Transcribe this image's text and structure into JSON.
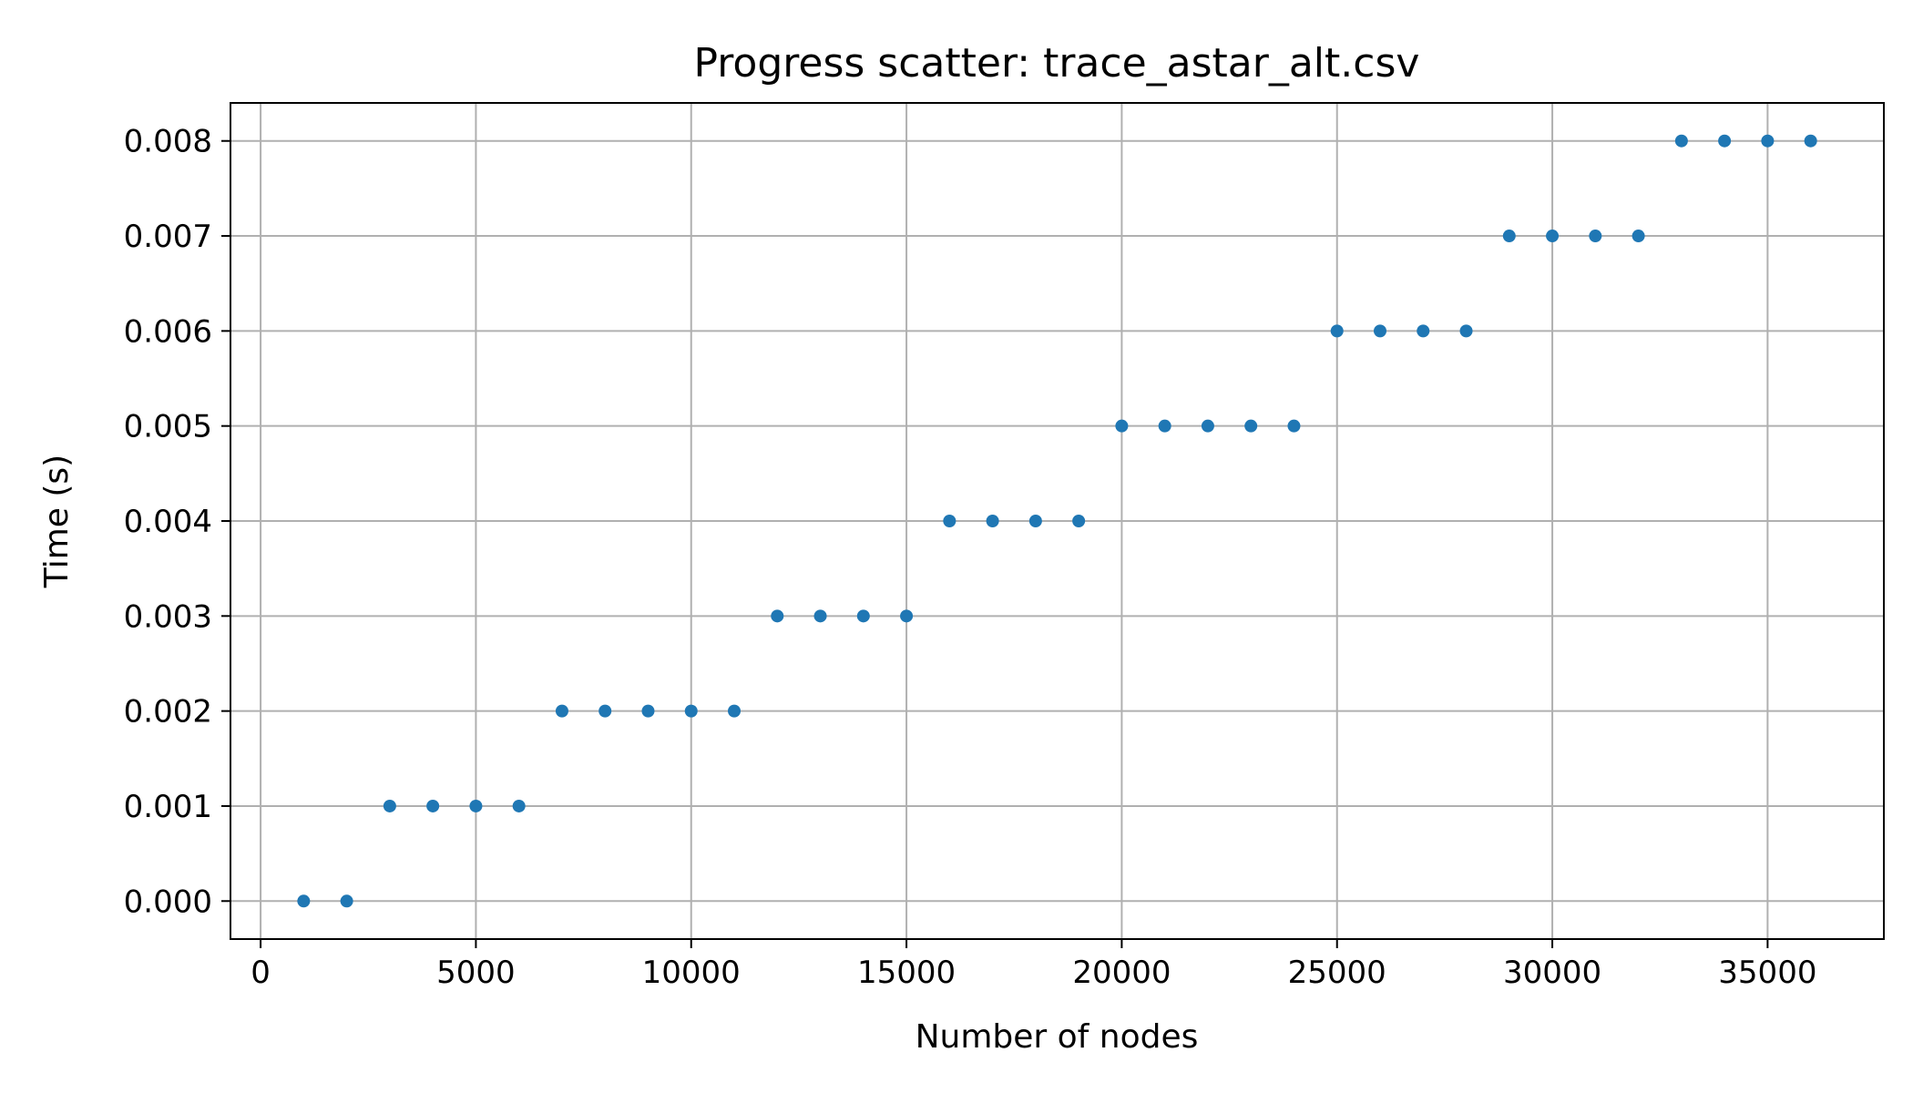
{
  "chart_data": {
    "type": "scatter",
    "title": "Progress scatter: trace_astar_alt.csv",
    "xlabel": "Number of nodes",
    "ylabel": "Time (s)",
    "xlim": [
      -700,
      37700
    ],
    "ylim": [
      -0.0004,
      0.0084
    ],
    "xticks": [
      0,
      5000,
      10000,
      15000,
      20000,
      25000,
      30000,
      35000
    ],
    "yticks": [
      0.0,
      0.001,
      0.002,
      0.003,
      0.004,
      0.005,
      0.006,
      0.007,
      0.008
    ],
    "xtick_labels": [
      "0",
      "5000",
      "10000",
      "15000",
      "20000",
      "25000",
      "30000",
      "35000"
    ],
    "ytick_labels": [
      "0.000",
      "0.001",
      "0.002",
      "0.003",
      "0.004",
      "0.005",
      "0.006",
      "0.007",
      "0.008"
    ],
    "grid": true,
    "colors": {
      "points": "#1f77b4",
      "grid": "#b0b0b0",
      "axes": "#000000"
    },
    "series": [
      {
        "x": [
          1000,
          2000,
          3000,
          4000,
          5000,
          6000,
          7000,
          8000,
          9000,
          10000,
          11000,
          12000,
          13000,
          14000,
          15000,
          16000,
          17000,
          18000,
          19000,
          20000,
          21000,
          22000,
          23000,
          24000,
          25000,
          26000,
          27000,
          28000,
          29000,
          30000,
          31000,
          32000,
          33000,
          34000,
          35000,
          36000
        ],
        "y": [
          0.0,
          0.0,
          0.001,
          0.001,
          0.001,
          0.001,
          0.002,
          0.002,
          0.002,
          0.002,
          0.002,
          0.003,
          0.003,
          0.003,
          0.003,
          0.004,
          0.004,
          0.004,
          0.004,
          0.005,
          0.005,
          0.005,
          0.005,
          0.005,
          0.006,
          0.006,
          0.006,
          0.006,
          0.007,
          0.007,
          0.007,
          0.007,
          0.008,
          0.008,
          0.008,
          0.008
        ]
      }
    ]
  }
}
